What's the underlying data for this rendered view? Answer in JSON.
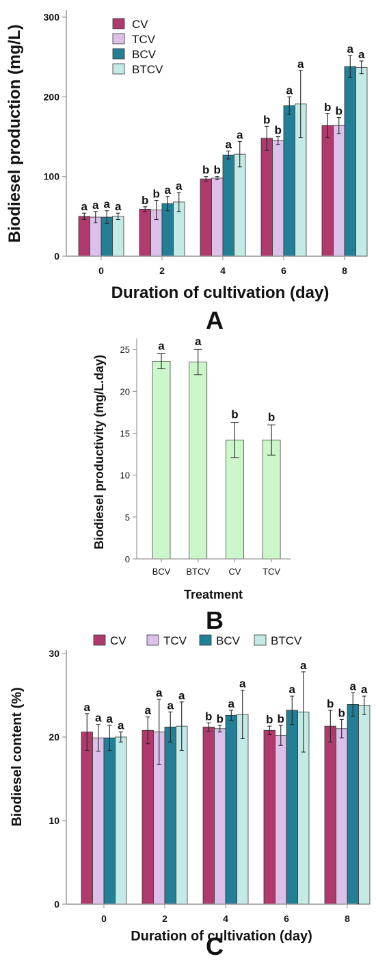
{
  "colors": {
    "CV": "#b03a6c",
    "TCV": "#dcc0ea",
    "BCV": "#227f96",
    "BTCV": "#c4eae6",
    "treatment_bar": "#cbf7cb",
    "axis": "#999999",
    "text": "#111111"
  },
  "chart_data": [
    {
      "type": "bar",
      "panel_label": "A",
      "xlabel": "Duration of cultivation (day)",
      "ylabel": "Biodiesel production (mg/L)",
      "categories": [
        "0",
        "2",
        "4",
        "6",
        "8"
      ],
      "ylim": [
        0,
        300
      ],
      "yticks": [
        "0",
        "100",
        "200",
        "300"
      ],
      "legend_position": "top-left, vertical",
      "series": [
        {
          "name": "CV",
          "values": [
            50,
            59,
            97,
            148,
            164
          ],
          "errors": [
            4,
            3,
            3,
            15,
            15
          ],
          "sig": [
            "a",
            "b",
            "b",
            "b",
            "b"
          ]
        },
        {
          "name": "TCV",
          "values": [
            49,
            58,
            98,
            145,
            164
          ],
          "errors": [
            7,
            12,
            2,
            5,
            10
          ],
          "sig": [
            "a",
            "b",
            "b",
            "b",
            "b"
          ]
        },
        {
          "name": "BCV",
          "values": [
            49,
            66,
            127,
            189,
            238
          ],
          "errors": [
            8,
            9,
            5,
            11,
            14
          ],
          "sig": [
            "a",
            "a",
            "a",
            "a",
            "a"
          ]
        },
        {
          "name": "BTCV",
          "values": [
            50,
            68,
            128,
            191,
            237
          ],
          "errors": [
            4,
            12,
            16,
            42,
            8
          ],
          "sig": [
            "a",
            "a",
            "a",
            "a",
            "a"
          ]
        }
      ]
    },
    {
      "type": "bar",
      "panel_label": "B",
      "xlabel": "Treatment",
      "ylabel": "Biodiesel productivity (mg/L.day)",
      "categories": [
        "BCV",
        "BTCV",
        "CV",
        "TCV"
      ],
      "values": [
        23.6,
        23.5,
        14.2,
        14.2
      ],
      "errors": [
        0.9,
        1.5,
        2.1,
        1.8
      ],
      "sig": [
        "a",
        "a",
        "b",
        "b"
      ],
      "ylim": [
        0,
        26
      ],
      "yticks": [
        "0",
        "5",
        "10",
        "15",
        "20",
        "25"
      ]
    },
    {
      "type": "bar",
      "panel_label": "C",
      "xlabel": "Duration of cultivation (day)",
      "ylabel": "Biodiesel content (%)",
      "categories": [
        "0",
        "2",
        "4",
        "6",
        "8"
      ],
      "ylim": [
        0,
        30
      ],
      "yticks": [
        "0",
        "10",
        "20",
        "30"
      ],
      "legend_position": "top, horizontal",
      "series": [
        {
          "name": "CV",
          "values": [
            20.6,
            20.8,
            21.2,
            20.8,
            21.3
          ],
          "errors": [
            2.2,
            1.6,
            0.5,
            0.5,
            1.9
          ],
          "sig": [
            "a",
            "a",
            "b",
            "b",
            "b"
          ]
        },
        {
          "name": "TCV",
          "values": [
            19.9,
            20.6,
            21.0,
            20.2,
            21.0
          ],
          "errors": [
            1.6,
            3.9,
            0.4,
            1.2,
            1.1
          ],
          "sig": [
            "a",
            "a",
            "b",
            "b",
            "b"
          ]
        },
        {
          "name": "BCV",
          "values": [
            19.9,
            21.2,
            22.6,
            23.2,
            23.9
          ],
          "errors": [
            1.5,
            1.8,
            0.6,
            1.7,
            1.4
          ],
          "sig": [
            "a",
            "a",
            "a",
            "a",
            "a"
          ]
        },
        {
          "name": "BTCV",
          "values": [
            20.0,
            21.3,
            22.7,
            23.0,
            23.8
          ],
          "errors": [
            0.6,
            2.9,
            2.9,
            4.8,
            1.1
          ],
          "sig": [
            "a",
            "a",
            "a",
            "a",
            "a"
          ]
        }
      ]
    }
  ]
}
